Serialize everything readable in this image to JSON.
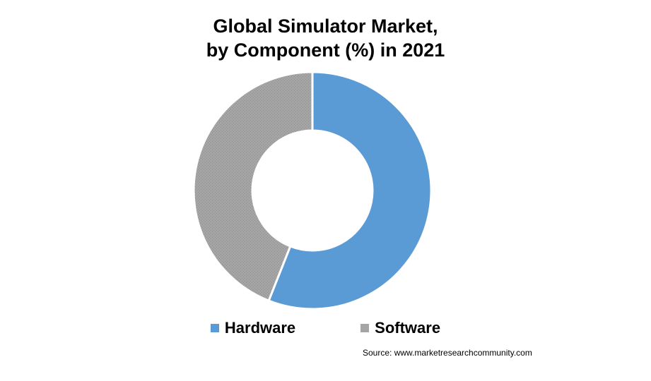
{
  "chart_data": {
    "type": "pie",
    "donut": true,
    "title_line1": "Global Simulator Market,",
    "title_line2": "by Component (%) in 2021",
    "categories": [
      "Hardware",
      "Software"
    ],
    "values": [
      56,
      44
    ],
    "colors": [
      "#5b9bd5",
      "#a5a5a5"
    ],
    "legend_position": "bottom",
    "source": "Source: www.marketresearchcommunity.com"
  }
}
